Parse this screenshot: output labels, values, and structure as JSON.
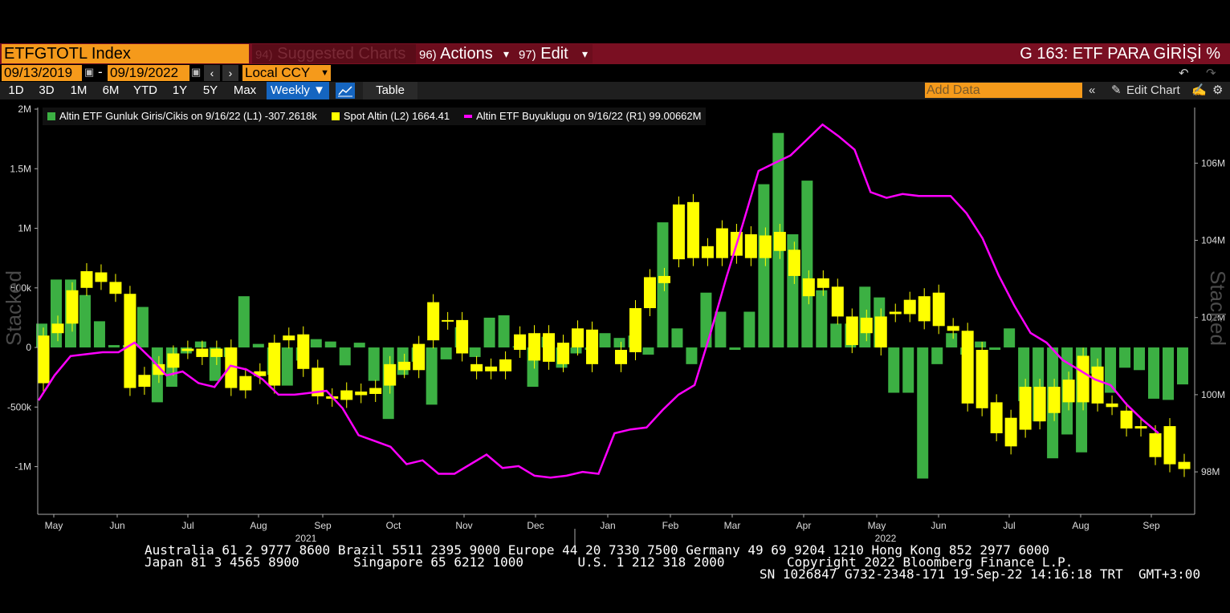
{
  "toolbar": {
    "ticker": "ETFGTOTL Index",
    "suggested_num": "94)",
    "suggested_label": "Suggested Charts",
    "actions_num": "96)",
    "actions_label": "Actions",
    "edit_num": "97)",
    "edit_label": "Edit",
    "page_title": "G 163: ETF PARA GİRİŞİ %"
  },
  "range": {
    "start_date": "09/13/2019",
    "separator": "-",
    "end_date": "09/19/2022",
    "currency": "Local CCY"
  },
  "periods": [
    "1D",
    "3D",
    "1M",
    "6M",
    "YTD",
    "1Y",
    "5Y",
    "Max"
  ],
  "frequency": "Weekly",
  "table_label": "Table",
  "add_data_placeholder": "Add Data",
  "edit_chart_label": "Edit Chart",
  "legend": [
    {
      "label": "Altin ETF Gunluk Giris/Cikis on 9/16/22 (L1) -307.2618k",
      "color": "#3cb043"
    },
    {
      "label": "Spot Altin (L2) 1664.41",
      "color": "#ffff00"
    },
    {
      "label": "Altin ETF Buyuklugu on 9/16/22 (R1) 99.00662M",
      "color": "#ff00ff"
    }
  ],
  "side_label_left": "Stacked",
  "side_label_right": "Stacked",
  "footer": {
    "line1": "Australia 61 2 9777 8600 Brazil 5511 2395 9000 Europe 44 20 7330 7500 Germany 49 69 9204 1210 Hong Kong 852 2977 6000",
    "line2a": "Japan 81 3 4565 8900       Singapore 65 6212 1000       U.S. 1 212 318 2000",
    "line2b": "Copyright 2022 Bloomberg Finance L.P.",
    "line3": "SN 1026847 G732-2348-171 19-Sep-22 14:16:18 TRT  GMT+3:00"
  },
  "chart_data": {
    "type": "bar",
    "x_labels": [
      "May",
      "Jun",
      "Jul",
      "Aug",
      "Sep",
      "Oct",
      "Nov",
      "Dec",
      "Jan",
      "Feb",
      "Mar",
      "Apr",
      "May",
      "Jun",
      "Jul",
      "Aug",
      "Sep"
    ],
    "year_labels": [
      "2021",
      "2022"
    ],
    "y_left_ticks": [
      "2M",
      "1.5M",
      "1M",
      "500k",
      "0",
      "-500k",
      "-1M"
    ],
    "y_right_ticks": [
      "106M",
      "104M",
      "102M",
      "100M",
      "98M"
    ],
    "y_left_range": [
      -1.4,
      2.0
    ],
    "y_right_range": [
      96.9,
      107.4
    ],
    "colors": {
      "flow": "#3cb043",
      "candle": "#ffff00",
      "size": "#ff00ff",
      "axis": "#aaaaaa"
    },
    "flows_M": [
      0.2,
      0.57,
      0.57,
      0.44,
      0.22,
      0.02,
      0.02,
      0.34,
      -0.46,
      -0.33,
      -0.05,
      0.05,
      -0.28,
      -0.08,
      0.43,
      0.03,
      -0.23,
      -0.32,
      -0.11,
      0.07,
      0.05,
      -0.15,
      0.04,
      -0.28,
      -0.6,
      -0.23,
      -0.12,
      -0.48,
      -0.1,
      0.17,
      -0.08,
      0.25,
      0.27,
      0.01,
      -0.33,
      0.09,
      -0.17,
      -0.05,
      -0.02,
      0.12,
      0.08,
      0.1,
      -0.06,
      1.05,
      0.16,
      -0.14,
      0.46,
      0.3,
      -0.02,
      0.3,
      1.37,
      1.8,
      0.95,
      1.4,
      0.48,
      0.2,
      0.2,
      0.51,
      0.42,
      -0.38,
      -0.38,
      -1.1,
      -0.14,
      0.12,
      -0.06,
      0.05,
      -0.02,
      0.16,
      -0.45,
      -0.62,
      -0.93,
      -0.73,
      -0.88,
      -0.22,
      -0.38,
      -0.17,
      -0.19,
      -0.43,
      -0.44,
      -0.31
    ],
    "candles_M": [
      [
        0.1,
        -0.3
      ],
      [
        0.2,
        0.12
      ],
      [
        0.48,
        0.2
      ],
      [
        0.64,
        0.5
      ],
      [
        0.63,
        0.55
      ],
      [
        0.55,
        0.45
      ],
      [
        0.45,
        -0.34
      ],
      [
        -0.23,
        -0.33
      ],
      [
        -0.14,
        -0.23
      ],
      [
        -0.05,
        -0.17
      ],
      [
        -0.01,
        -0.03
      ],
      [
        -0.01,
        -0.08
      ],
      [
        -0.08,
        -0.01
      ],
      [
        -0.34,
        0.0
      ],
      [
        -0.24,
        -0.36
      ],
      [
        -0.24,
        -0.2
      ],
      [
        -0.32,
        0.04
      ],
      [
        0.06,
        0.1
      ],
      [
        0.11,
        -0.18
      ],
      [
        -0.17,
        -0.41
      ],
      [
        -0.43,
        -0.41
      ],
      [
        -0.36,
        -0.44
      ],
      [
        -0.37,
        -0.4
      ],
      [
        -0.34,
        -0.39
      ],
      [
        -0.14,
        -0.32
      ],
      [
        -0.12,
        -0.19
      ],
      [
        0.03,
        -0.19
      ],
      [
        0.38,
        0.06
      ],
      [
        0.23,
        0.23
      ],
      [
        0.23,
        -0.05
      ],
      [
        -0.14,
        -0.2
      ],
      [
        -0.2,
        -0.16
      ],
      [
        -0.1,
        -0.2
      ],
      [
        0.11,
        -0.02
      ],
      [
        0.12,
        -0.11
      ],
      [
        0.12,
        -0.12
      ],
      [
        -0.14,
        0.04
      ],
      [
        0.16,
        0.0
      ],
      [
        0.15,
        -0.14
      ],
      [
        -0.02,
        -0.14
      ],
      [
        0.33,
        -0.04
      ],
      [
        0.59,
        0.33
      ],
      [
        0.6,
        0.54
      ],
      [
        1.2,
        0.74
      ],
      [
        1.22,
        0.75
      ],
      [
        0.85,
        0.75
      ],
      [
        1.0,
        0.75
      ],
      [
        0.77,
        0.97
      ],
      [
        0.95,
        0.75
      ],
      [
        0.75,
        0.94
      ],
      [
        0.81,
        0.97
      ],
      [
        0.6,
        0.82
      ],
      [
        0.58,
        0.43
      ],
      [
        0.5,
        0.58
      ],
      [
        0.51,
        0.26
      ],
      [
        0.26,
        0.02
      ],
      [
        0.12,
        0.25
      ],
      [
        0.26,
        0.0
      ],
      [
        0.3,
        0.28
      ],
      [
        0.4,
        0.28
      ],
      [
        0.43,
        0.22
      ],
      [
        0.46,
        0.18
      ],
      [
        0.18,
        0.14
      ],
      [
        -0.47,
        0.14
      ],
      [
        -0.51,
        -0.02
      ],
      [
        -0.72,
        -0.46
      ],
      [
        -0.83,
        -0.59
      ],
      [
        -0.69,
        -0.33
      ],
      [
        -0.33,
        -0.62
      ],
      [
        -0.55,
        -0.33
      ],
      [
        -0.27,
        -0.46
      ],
      [
        -0.46,
        -0.07
      ],
      [
        -0.47,
        -0.16
      ],
      [
        -0.5,
        -0.47
      ],
      [
        -0.68,
        -0.53
      ],
      [
        -0.66,
        -0.68
      ],
      [
        -0.72,
        -0.92
      ],
      [
        -0.98,
        -0.66
      ],
      [
        -1.02,
        -0.96
      ]
    ],
    "size_M": [
      99.85,
      100.5,
      101.0,
      101.05,
      101.1,
      101.1,
      101.35,
      100.95,
      100.5,
      100.6,
      100.3,
      100.2,
      100.75,
      100.65,
      100.4,
      100.0,
      100.0,
      100.05,
      100.1,
      99.65,
      98.95,
      98.8,
      98.65,
      98.2,
      98.3,
      97.95,
      97.95,
      98.2,
      98.45,
      98.1,
      98.15,
      97.9,
      97.85,
      97.9,
      98.0,
      97.95,
      99.0,
      99.1,
      99.15,
      99.6,
      100.0,
      100.25,
      101.6,
      103.05,
      104.4,
      105.8,
      106.0,
      106.2,
      106.6,
      107.0,
      106.7,
      106.35,
      105.25,
      105.1,
      105.2,
      105.15,
      105.15,
      105.15,
      104.7,
      104.05,
      103.1,
      102.3,
      101.6,
      101.35,
      100.9,
      100.65,
      100.4,
      100.25,
      99.75,
      99.35,
      99.0
    ]
  }
}
